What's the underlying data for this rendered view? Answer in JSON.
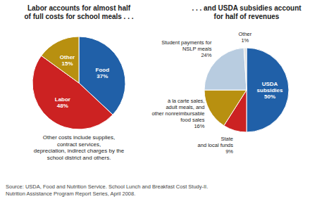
{
  "chart_data": [
    {
      "type": "pie",
      "title": "Labor accounts for almost half\nof full costs for school meals . . .",
      "categories": [
        "Food",
        "Labor",
        "Other"
      ],
      "values": [
        37,
        48,
        15
      ],
      "value_labels": [
        "37%",
        "48%",
        "15%"
      ],
      "colors": [
        "#2060a8",
        "#cc2222",
        "#b89010"
      ],
      "data_labels": true,
      "annotations": [
        "Other costs include supplies,\ncontract services,\ndepreciation, indirect charges by the\nschool district and others."
      ]
    },
    {
      "type": "pie",
      "title": ". . . and USDA subsidies account\nfor half of revenues",
      "categories": [
        "USDA\nsubsidies",
        "State\nand local funds",
        "à la carte sales,\nadult meals, and\nother nonreimbursable\nfood sales",
        "Student payments for\nNSLP meals",
        "Other"
      ],
      "values": [
        50,
        9,
        16,
        24,
        1
      ],
      "value_labels": [
        "50%",
        "9%",
        "16%",
        "24%",
        "1%"
      ],
      "colors": [
        "#2060a8",
        "#cc2222",
        "#b89010",
        "#b8cce0",
        "#e0e0e0"
      ],
      "data_labels": true
    }
  ],
  "source": "Source: USDA, Food and Nutrition Service. School Lunch and Breakfast Cost Study-II.\nNutrition Assistance Program Report Series, April 2008."
}
